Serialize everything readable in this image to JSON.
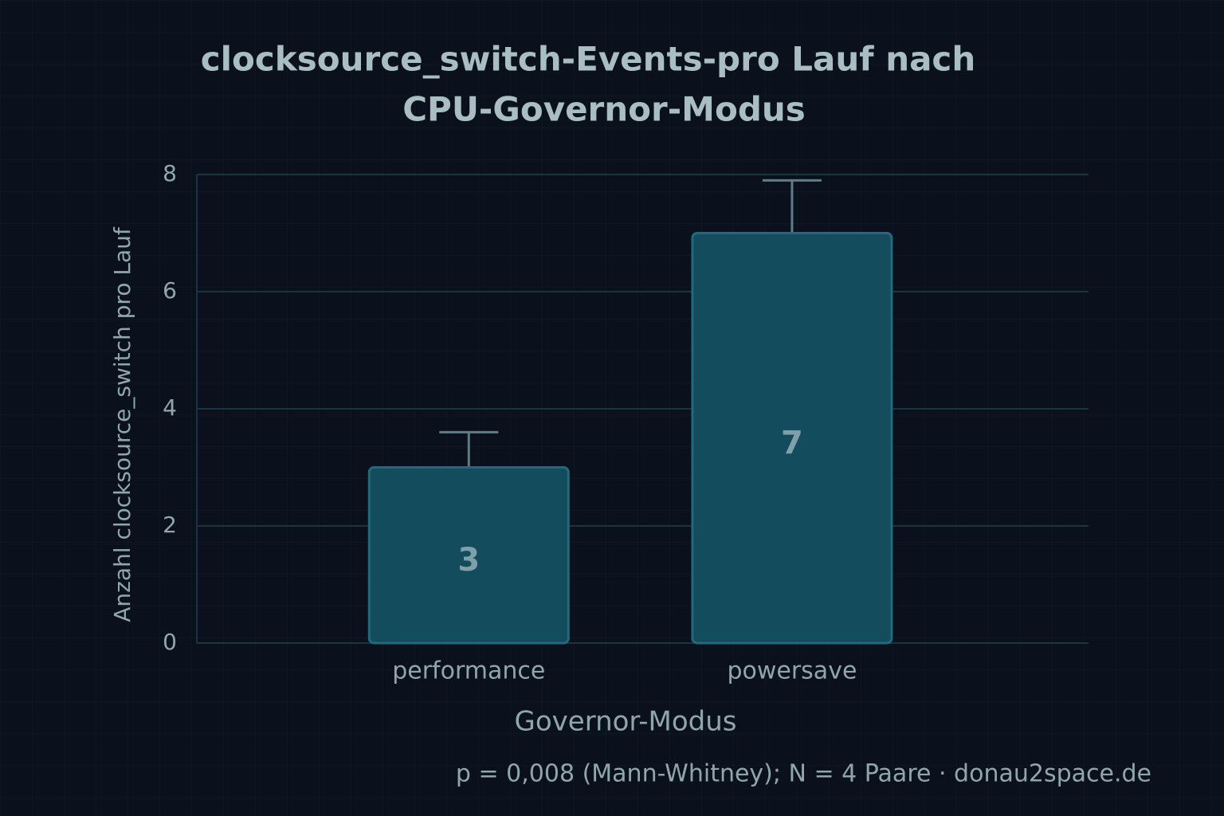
{
  "chart_data": {
    "type": "bar",
    "title": [
      "clocksource_switch-Events-pro Lauf nach",
      "CPU-Governor-Modus"
    ],
    "x_label": "Governor-Modus",
    "y_label": "Anzahl clocksource_switch pro Lauf",
    "categories": [
      "performance",
      "powersave"
    ],
    "values": [
      3,
      7
    ],
    "errors": [
      0.6,
      0.9
    ],
    "color": "#134c5c",
    "ylim": [
      0,
      8
    ],
    "yticks": [
      0,
      2,
      4,
      6,
      8
    ],
    "grid": true,
    "annotation": "p = 0,008 (Mann-Whitney); N = 4 Paare  ·  donau2space.de"
  }
}
